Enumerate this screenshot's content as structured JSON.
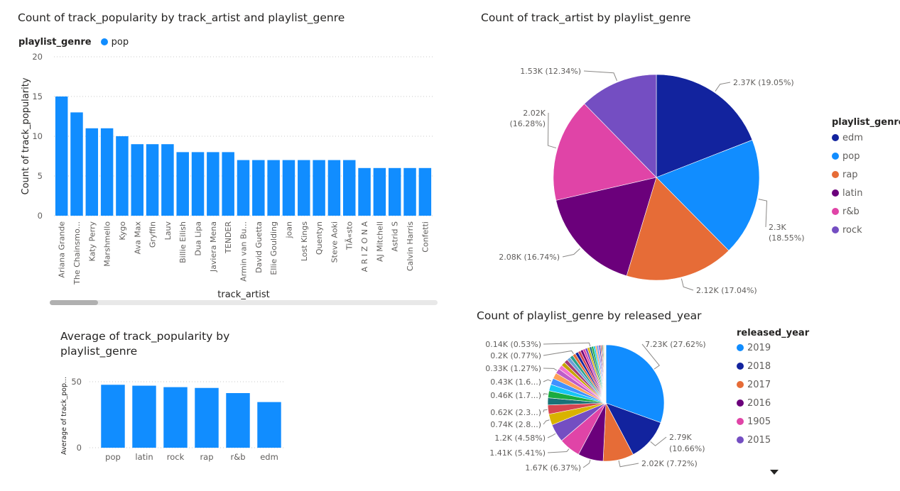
{
  "charts": {
    "bar_artist": {
      "title": "Count of track_popularity by track_artist and playlist_genre",
      "legend_title": "playlist_genre",
      "legend_items": [
        {
          "label": "pop",
          "color": "#118DFF"
        }
      ],
      "ylabel": "Count of track_popularity",
      "xlabel": "track_artist",
      "yticks": [
        "0",
        "5",
        "10",
        "15",
        "20"
      ]
    },
    "pie_genre": {
      "title": "Count of track_artist by playlist_genre",
      "legend_title": "playlist_genre"
    },
    "bar_avg": {
      "title_line1": "Average of track_popularity by",
      "title_line2": "playlist_genre",
      "ylabel": "Average of track_pop...",
      "yticks": [
        "0",
        "50"
      ]
    },
    "pie_year": {
      "title": "Count of playlist_genre by released_year",
      "legend_title": "released_year"
    }
  },
  "chart_data": [
    {
      "type": "bar",
      "title": "Count of track_popularity by track_artist and playlist_genre",
      "xlabel": "track_artist",
      "ylabel": "Count of track_popularity",
      "ylim": [
        0,
        20
      ],
      "grid": true,
      "legend": "top-left",
      "series": [
        {
          "name": "pop",
          "color": "#118DFF"
        }
      ],
      "categories": [
        "Ariana Grande",
        "The Chainsmo...",
        "Katy Perry",
        "Marshmello",
        "Kygo",
        "Ava Max",
        "Gryffin",
        "Lauv",
        "Billie Eilish",
        "Dua Lipa",
        "Javiera Mena",
        "TENDER",
        "Armin van Bu...",
        "David Guetta",
        "Ellie Goulding",
        "joan",
        "Lost Kings",
        "Quentyn",
        "Steve Aoki",
        "TiÃ«sto",
        "A R I Z O N A",
        "AJ Mitchell",
        "Astrid S",
        "Calvin Harris",
        "Confetti"
      ],
      "values": [
        15,
        13,
        11,
        11,
        10,
        9,
        9,
        9,
        8,
        8,
        8,
        8,
        7,
        7,
        7,
        7,
        7,
        7,
        7,
        7,
        6,
        6,
        6,
        6,
        6
      ]
    },
    {
      "type": "pie",
      "title": "Count of track_artist by playlist_genre",
      "legend": "right",
      "slices": [
        {
          "label": "edm",
          "value": 2370,
          "display": "2.37K (19.05%)",
          "color": "#12239E"
        },
        {
          "label": "pop",
          "value": 2300,
          "display": "2.3K (18.55%)",
          "color": "#118DFF"
        },
        {
          "label": "rap",
          "value": 2120,
          "display": "2.12K (17.04%)",
          "color": "#E66C37"
        },
        {
          "label": "latin",
          "value": 2080,
          "display": "2.08K (16.74%)",
          "color": "#6B007B"
        },
        {
          "label": "r&b",
          "value": 2020,
          "display": "2.02K (16.28%)",
          "color": "#E044A7"
        },
        {
          "label": "rock",
          "value": 1530,
          "display": "1.53K (12.34%)",
          "color": "#744EC2"
        }
      ]
    },
    {
      "type": "bar",
      "title": "Average of track_popularity by playlist_genre",
      "ylabel": "Average of track_pop...",
      "ylim": [
        0,
        60
      ],
      "grid": true,
      "categories": [
        "pop",
        "latin",
        "rock",
        "rap",
        "r&b",
        "edm"
      ],
      "values": [
        47.7,
        47.0,
        45.9,
        45.3,
        41.4,
        34.6
      ],
      "color": "#118DFF"
    },
    {
      "type": "pie",
      "title": "Count of playlist_genre by released_year",
      "legend": "right",
      "legend_items": [
        {
          "label": "2019",
          "color": "#118DFF"
        },
        {
          "label": "2018",
          "color": "#12239E"
        },
        {
          "label": "2017",
          "color": "#E66C37"
        },
        {
          "label": "2016",
          "color": "#6B007B"
        },
        {
          "label": "1905",
          "color": "#E044A7"
        },
        {
          "label": "2015",
          "color": "#744EC2"
        }
      ],
      "slices": [
        {
          "value": 27.62,
          "display": "7.23K (27.62%)",
          "color": "#118DFF"
        },
        {
          "value": 10.66,
          "display": "2.79K (10.66%)",
          "color": "#12239E"
        },
        {
          "value": 7.72,
          "display": "2.02K (7.72%)",
          "color": "#E66C37"
        },
        {
          "value": 6.37,
          "display": "1.67K (6.37%)",
          "color": "#6B007B"
        },
        {
          "value": 5.41,
          "display": "1.41K (5.41%)",
          "color": "#E044A7"
        },
        {
          "value": 4.58,
          "display": "1.2K (4.58%)",
          "color": "#744EC2"
        },
        {
          "value": 2.8,
          "display": "0.74K (2.8...)",
          "color": "#D9B300"
        },
        {
          "value": 2.3,
          "display": "0.62K (2.3...)",
          "color": "#D64550"
        },
        {
          "value": 1.8,
          "color": "#197278"
        },
        {
          "value": 1.75,
          "display": "0.46K (1.7...)",
          "color": "#1AAB40"
        },
        {
          "value": 1.65,
          "color": "#15C6F4"
        },
        {
          "value": 1.6,
          "display": "0.43K (1.6...)",
          "color": "#4092FF"
        },
        {
          "value": 1.5,
          "color": "#FFA058"
        },
        {
          "value": 1.27,
          "display": "0.33K (1.27%)",
          "color": "#BE5DC9"
        },
        {
          "value": 1.1,
          "color": "#F472D0"
        },
        {
          "value": 1.0,
          "color": "#C7A400"
        },
        {
          "value": 0.95,
          "color": "#A43B76"
        },
        {
          "value": 0.9,
          "color": "#6AA1D8"
        },
        {
          "value": 0.85,
          "color": "#2BA28A"
        },
        {
          "value": 0.77,
          "display": "0.2K (0.77%)",
          "color": "#E66C37"
        },
        {
          "value": 0.75,
          "color": "#12239E"
        },
        {
          "value": 0.7,
          "color": "#D64550"
        },
        {
          "value": 0.65,
          "color": "#6B007B"
        },
        {
          "value": 0.6,
          "color": "#E044A7"
        },
        {
          "value": 0.58,
          "color": "#744EC2"
        },
        {
          "value": 0.55,
          "color": "#D9B300"
        },
        {
          "value": 0.53,
          "display": "0.14K (0.53%)",
          "color": "#197278"
        },
        {
          "value": 0.5,
          "color": "#1AAB40"
        },
        {
          "value": 0.45,
          "color": "#15C6F4"
        },
        {
          "value": 0.4,
          "color": "#FFA058"
        },
        {
          "value": 0.35,
          "color": "#4092FF"
        },
        {
          "value": 0.3,
          "color": "#BE5DC9"
        },
        {
          "value": 0.28,
          "color": "#12239E"
        },
        {
          "value": 0.25,
          "color": "#E66C37"
        },
        {
          "value": 0.22,
          "color": "#6B007B"
        },
        {
          "value": 0.2,
          "color": "#1AAB40"
        },
        {
          "value": 0.18,
          "color": "#D9B300"
        },
        {
          "value": 0.15,
          "color": "#A43B76"
        },
        {
          "value": 0.12,
          "color": "#197278"
        },
        {
          "value": 0.1,
          "color": "#744EC2"
        },
        {
          "value": 0.08,
          "color": "#2BA28A"
        },
        {
          "value": 0.06,
          "color": "#C7A400"
        }
      ]
    }
  ]
}
